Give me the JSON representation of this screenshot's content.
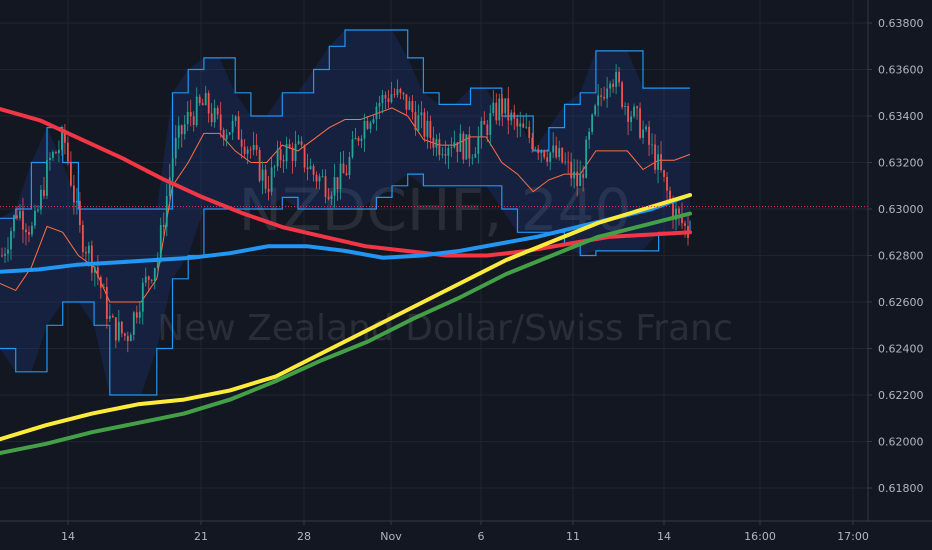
{
  "watermark": {
    "symbol": "NZDCHF, 240",
    "description": "New Zealand Dollar/Swiss Franc"
  },
  "colors": {
    "background": "#131722",
    "grid": "#1f2430",
    "axis_border": "#363a45",
    "text": "#b2b5be",
    "candle_up": "#26a69a",
    "candle_down": "#ef5350",
    "channel_line": "#2196f3",
    "channel_fill": "#2962ff",
    "mid_line": "#ff7043",
    "ma_red": "#f23645",
    "ma_blue": "#2196f3",
    "ma_yellow": "#ffeb3b",
    "ma_green": "#43a047",
    "price_line": "#f23645"
  },
  "chart_data": {
    "type": "line",
    "ylim": [
      0.6172,
      0.6396
    ],
    "x_ticks": [
      "14",
      "21",
      "28",
      "Nov",
      "6",
      "11",
      "14",
      "16:00",
      "17:00"
    ],
    "y_ticks": [
      "0.63800",
      "0.63600",
      "0.63400",
      "0.63200",
      "0.63000",
      "0.62800",
      "0.62600",
      "0.62400",
      "0.62200",
      "0.62000",
      "0.61800"
    ],
    "current_price": 0.6301,
    "grid": true,
    "price_series": {
      "name": "",
      "values": [
        0.628,
        0.63,
        0.629,
        0.632,
        0.633,
        0.629,
        0.6275,
        0.625,
        0.6245,
        0.6265,
        0.628,
        0.6325,
        0.634,
        0.6345,
        0.6335,
        0.6335,
        0.6325,
        0.631,
        0.6325,
        0.6325,
        0.6315,
        0.631,
        0.6315,
        0.6335,
        0.6345,
        0.635,
        0.6345,
        0.6335,
        0.6328,
        0.633,
        0.6325,
        0.6335,
        0.6345,
        0.6335,
        0.633,
        0.6325,
        0.632,
        0.631,
        0.634,
        0.636,
        0.6345,
        0.6335,
        0.632,
        0.63,
        0.629
      ]
    },
    "channel": {
      "upper": [
        0.6296,
        0.63,
        0.632,
        0.6335,
        0.632,
        0.63,
        0.63,
        0.63,
        0.63,
        0.63,
        0.63,
        0.635,
        0.636,
        0.6365,
        0.6365,
        0.635,
        0.634,
        0.634,
        0.635,
        0.635,
        0.636,
        0.637,
        0.6377,
        0.6377,
        0.6377,
        0.6377,
        0.6365,
        0.635,
        0.6345,
        0.6345,
        0.6352,
        0.6352,
        0.634,
        0.634,
        0.6325,
        0.6335,
        0.6345,
        0.635,
        0.6368,
        0.6368,
        0.6368,
        0.6352,
        0.6352,
        0.6352,
        0.6352
      ],
      "lower": [
        0.624,
        0.623,
        0.623,
        0.625,
        0.626,
        0.626,
        0.625,
        0.622,
        0.622,
        0.622,
        0.624,
        0.627,
        0.628,
        0.63,
        0.63,
        0.63,
        0.63,
        0.63,
        0.6305,
        0.63,
        0.63,
        0.63,
        0.63,
        0.63,
        0.6305,
        0.631,
        0.6315,
        0.631,
        0.631,
        0.631,
        0.631,
        0.631,
        0.63,
        0.629,
        0.629,
        0.629,
        0.6285,
        0.628,
        0.6282,
        0.6282,
        0.6282,
        0.6282,
        0.629,
        0.629,
        0.6295
      ]
    },
    "series": [
      {
        "name": "",
        "color_key": "ma_red",
        "values": [
          0.6343,
          0.6338,
          0.633,
          0.6322,
          0.6313,
          0.6305,
          0.6298,
          0.6292,
          0.6288,
          0.6284,
          0.6282,
          0.628,
          0.628,
          0.6282,
          0.6285,
          0.6288,
          0.6289,
          0.629
        ]
      },
      {
        "name": "",
        "color_key": "ma_blue",
        "values": [
          0.6273,
          0.6274,
          0.6276,
          0.6277,
          0.6278,
          0.6279,
          0.6281,
          0.6284,
          0.6284,
          0.6282,
          0.6279,
          0.628,
          0.6282,
          0.6285,
          0.6288,
          0.6292,
          0.6296,
          0.63,
          0.6306
        ]
      },
      {
        "name": "",
        "color_key": "ma_yellow",
        "values": [
          0.6201,
          0.6207,
          0.6212,
          0.6216,
          0.6218,
          0.6222,
          0.6228,
          0.6238,
          0.6248,
          0.6258,
          0.6268,
          0.6278,
          0.6286,
          0.6294,
          0.63,
          0.6306
        ]
      },
      {
        "name": "",
        "color_key": "ma_green",
        "values": [
          0.6195,
          0.6199,
          0.6204,
          0.6208,
          0.6212,
          0.6218,
          0.6226,
          0.6235,
          0.6243,
          0.6253,
          0.6262,
          0.6272,
          0.628,
          0.6288,
          0.6293,
          0.6298
        ]
      }
    ]
  }
}
